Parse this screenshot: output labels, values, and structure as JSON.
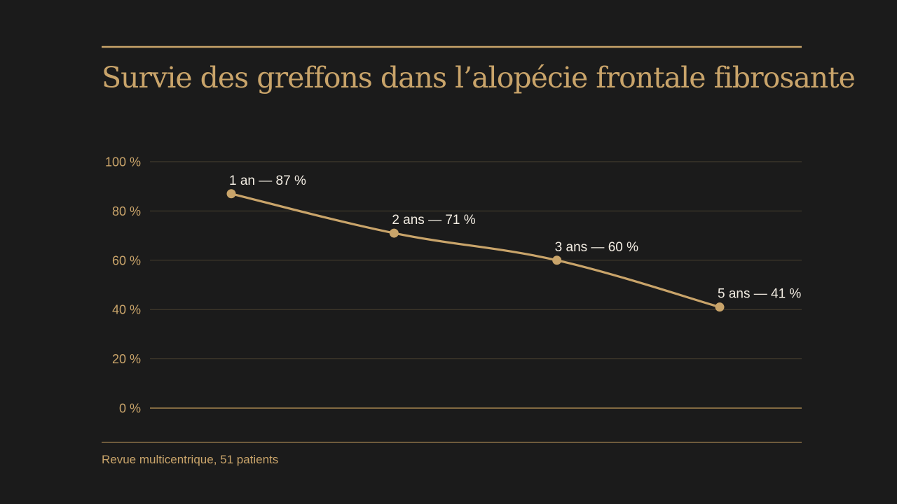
{
  "chart_data": {
    "type": "line",
    "title": "Survie des greffons dans l’alopécie frontale fibrosante",
    "xlabel": "",
    "ylabel": "",
    "x": [
      "1 an",
      "2 ans",
      "3 ans",
      "5 ans"
    ],
    "x_positions": [
      1,
      2,
      3,
      4
    ],
    "series": [
      {
        "values": [
          87,
          71,
          60,
          41
        ]
      }
    ],
    "data_labels": [
      "1 an — 87 %",
      "2 ans — 71 %",
      "3 ans — 60 %",
      "5 ans — 41 %"
    ],
    "y_ticks": [
      0,
      20,
      40,
      60,
      80,
      100
    ],
    "y_tick_labels": [
      "0 %",
      "20 %",
      "40 %",
      "60 %",
      "80 %",
      "100 %"
    ],
    "ylim": [
      0,
      100
    ],
    "grid": true,
    "legend": "none",
    "source": "Revue multicentrique, 51 patients",
    "colors": {
      "background": "#1b1b1b",
      "accent": "#c9a46a",
      "grid": "#4a4130",
      "baseline": "#a48450",
      "label_text": "#f2ece2"
    }
  }
}
